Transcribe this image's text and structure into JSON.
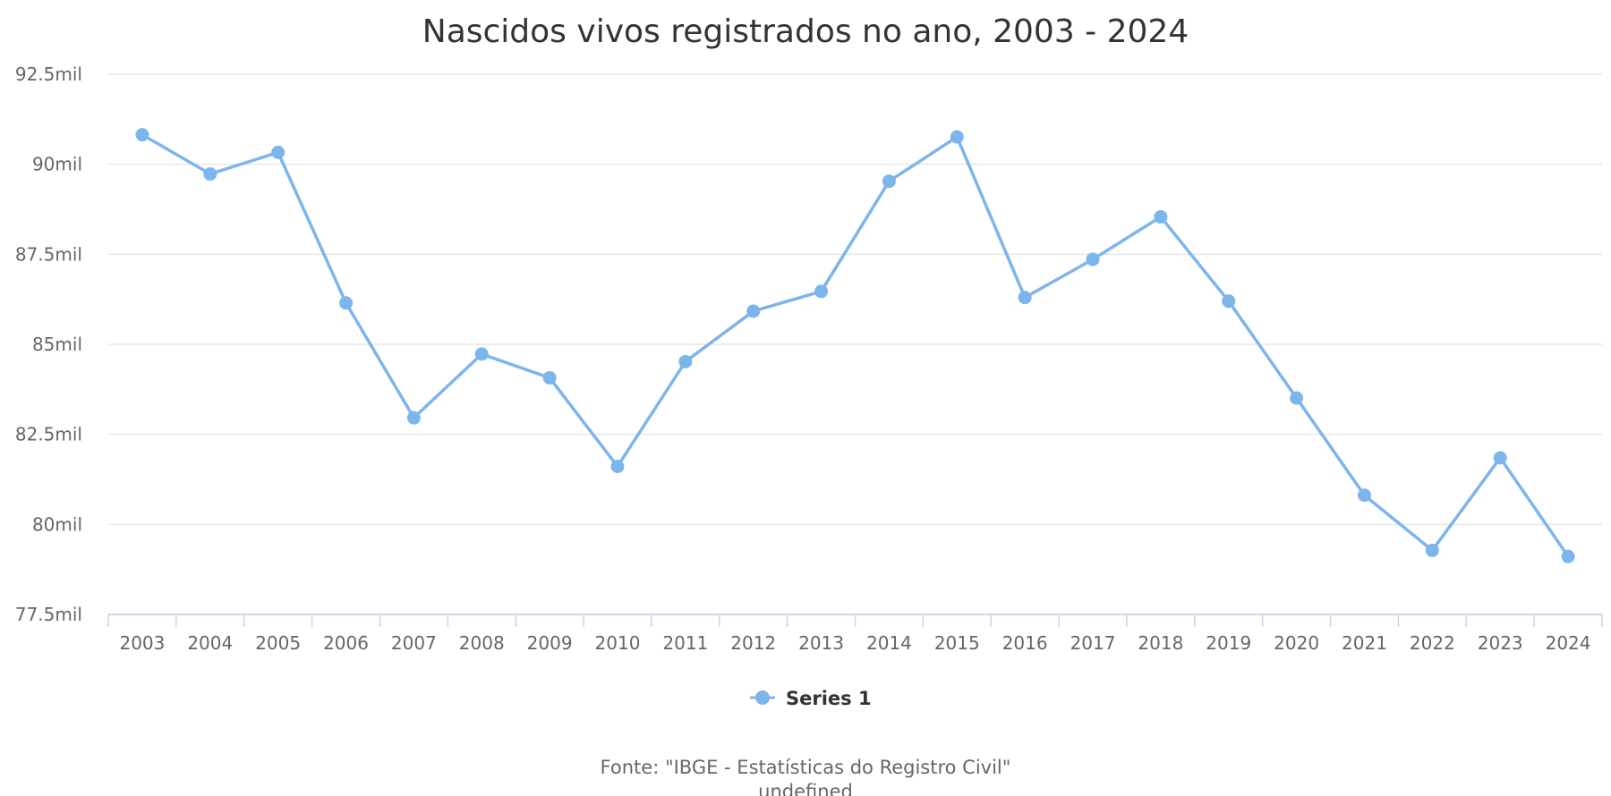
{
  "chart_data": {
    "type": "line",
    "title": "Nascidos vivos registrados no ano, 2003 - 2024",
    "xlabel": "",
    "ylabel": "",
    "categories": [
      "2003",
      "2004",
      "2005",
      "2006",
      "2007",
      "2008",
      "2009",
      "2010",
      "2011",
      "2012",
      "2013",
      "2014",
      "2015",
      "2016",
      "2017",
      "2018",
      "2019",
      "2020",
      "2021",
      "2022",
      "2023",
      "2024"
    ],
    "series": [
      {
        "name": "Series 1",
        "color": "#7cb5ec",
        "values": [
          90820,
          89730,
          90330,
          86150,
          82960,
          84730,
          84070,
          81610,
          84520,
          85920,
          86470,
          89530,
          90760,
          86300,
          87360,
          88540,
          86200,
          83510,
          80810,
          79280,
          81850,
          79110
        ]
      }
    ],
    "ylim": [
      77500,
      92500
    ],
    "yticks": [
      77500,
      80000,
      82500,
      85000,
      87500,
      90000,
      92500
    ],
    "ytick_labels": [
      "77.5mil",
      "80mil",
      "82.5mil",
      "85mil",
      "87.5mil",
      "90mil",
      "92.5mil"
    ],
    "grid": true,
    "legend_position": "bottom-center"
  },
  "credits": {
    "line1": "Fonte: \"IBGE - Estatísticas do Registro Civil\"",
    "line2": "undefined"
  }
}
